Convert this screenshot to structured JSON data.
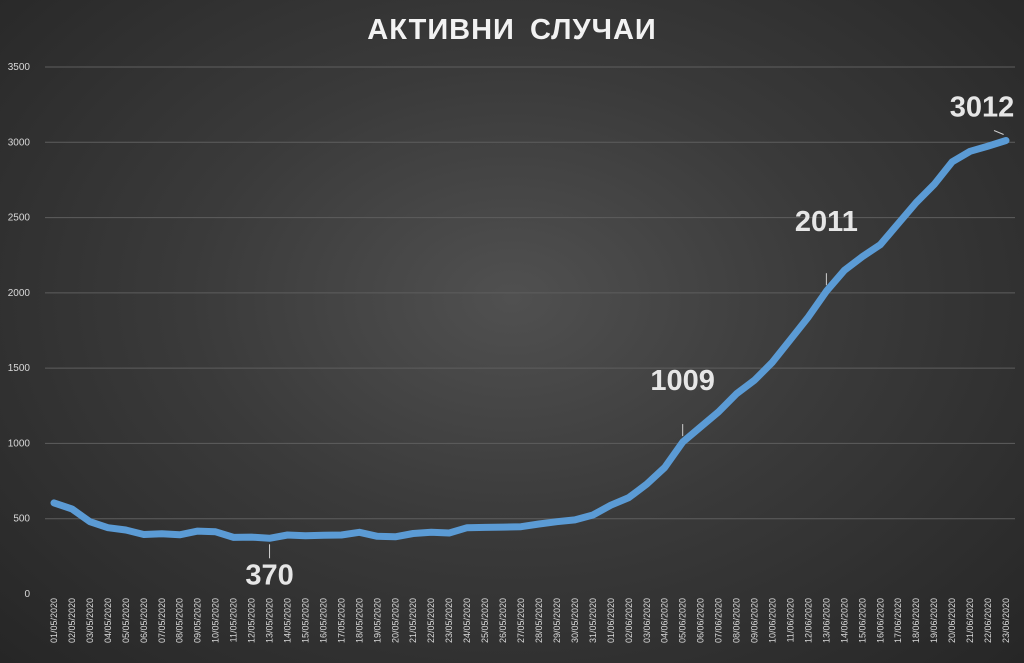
{
  "chart_data": {
    "type": "line",
    "title": "АКТИВНИ СЛУЧАИ",
    "xlabel": "",
    "ylabel": "",
    "ylim": [
      0,
      3500
    ],
    "yticks": [
      0,
      500,
      1000,
      1500,
      2000,
      2500,
      3000,
      3500
    ],
    "grid": true,
    "x": [
      "01/05/2020",
      "02/05/2020",
      "03/05/2020",
      "04/05/2020",
      "05/05/2020",
      "06/05/2020",
      "07/05/2020",
      "08/05/2020",
      "09/05/2020",
      "10/05/2020",
      "11/05/2020",
      "12/05/2020",
      "13/05/2020",
      "14/05/2020",
      "15/05/2020",
      "16/05/2020",
      "17/05/2020",
      "18/05/2020",
      "19/05/2020",
      "20/05/2020",
      "21/05/2020",
      "22/05/2020",
      "23/05/2020",
      "24/05/2020",
      "25/05/2020",
      "26/05/2020",
      "27/05/2020",
      "28/05/2020",
      "29/05/2020",
      "30/05/2020",
      "31/05/2020",
      "01/06/2020",
      "02/06/2020",
      "03/06/2020",
      "04/06/2020",
      "05/06/2020",
      "06/06/2020",
      "07/06/2020",
      "08/06/2020",
      "09/06/2020",
      "10/06/2020",
      "11/06/2020",
      "12/06/2020",
      "13/06/2020",
      "14/06/2020",
      "15/06/2020",
      "16/06/2020",
      "17/06/2020",
      "18/06/2020",
      "19/06/2020",
      "20/06/2020",
      "21/06/2020",
      "22/06/2020",
      "23/06/2020"
    ],
    "series": [
      {
        "values": [
          605,
          565,
          480,
          440,
          425,
          395,
          400,
          393,
          418,
          413,
          376,
          378,
          370,
          392,
          387,
          390,
          392,
          410,
          383,
          380,
          402,
          410,
          405,
          440,
          442,
          444,
          447,
          465,
          480,
          492,
          525,
          590,
          640,
          730,
          840,
          1009,
          1110,
          1210,
          1330,
          1420,
          1540,
          1690,
          1840,
          2011,
          2150,
          2240,
          2320,
          2460,
          2600,
          2720,
          2870,
          2940,
          2975,
          3012
        ]
      }
    ],
    "annotations": [
      {
        "index": 12,
        "label": "370"
      },
      {
        "index": 35,
        "label": "1009"
      },
      {
        "index": 43,
        "label": "2011"
      },
      {
        "index": 53,
        "label": "3012"
      }
    ],
    "colors": {
      "line": "#5b9bd5",
      "text": "#d9d9d9",
      "grid": "#5e5e5e"
    }
  }
}
